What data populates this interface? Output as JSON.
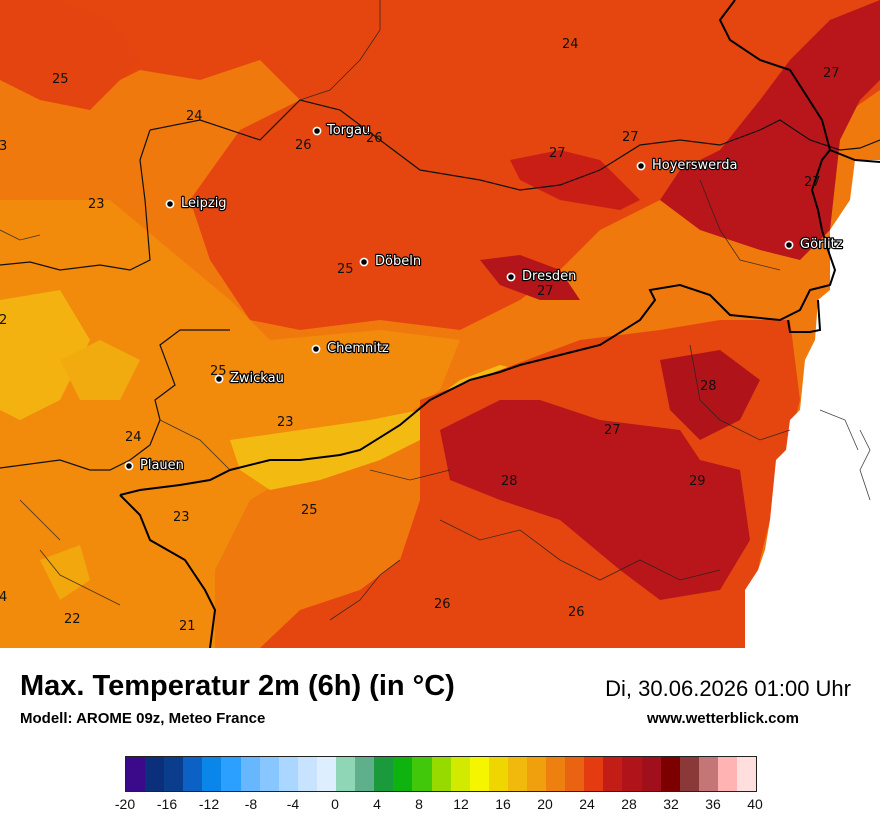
{
  "title": "Max. Temperatur 2m (6h) (in °C)",
  "model": "Modell: AROME 09z, Meteo France",
  "datetime": "Di, 30.06.2026 01:00 Uhr",
  "website": "www.wetterblick.com",
  "cities": [
    {
      "name": "Torgau"
    },
    {
      "name": "Hoyerswerda"
    },
    {
      "name": "Leipzig"
    },
    {
      "name": "Görlitz"
    },
    {
      "name": "Döbeln"
    },
    {
      "name": "Dresden"
    },
    {
      "name": "Chemnitz"
    },
    {
      "name": "Zwickau"
    },
    {
      "name": "Plauen"
    }
  ],
  "isotherm_labels": [
    "25",
    "24",
    "24",
    "26",
    "26",
    "27",
    "27",
    "27",
    "27",
    "3",
    "23",
    "25",
    "27",
    "2",
    "25",
    "28",
    "23",
    "27",
    "24",
    "28",
    "29",
    "23",
    "25",
    "4",
    "22",
    "21",
    "26",
    "26"
  ],
  "color_scale": {
    "colors": [
      "#3a0a8a",
      "#0c2f7c",
      "#0a3d8c",
      "#0c61c4",
      "#0a86ea",
      "#2ba0ff",
      "#66b7ff",
      "#88c6ff",
      "#abd6ff",
      "#c8e3ff",
      "#ddeeff",
      "#8fd6b7",
      "#5fb08a",
      "#1a9a3c",
      "#0fb30f",
      "#42c80a",
      "#97da00",
      "#d2ea00",
      "#f6f500",
      "#f0d600",
      "#f1b90b",
      "#f0a00d",
      "#ee8010",
      "#ea6313",
      "#e43b10",
      "#c21d17",
      "#b0141a",
      "#a0101c",
      "#7c0000",
      "#8a3838",
      "#c47575",
      "#ffb3b3",
      "#ffdede"
    ],
    "ticks": [
      "-20",
      "-16",
      "-12",
      "-8",
      "-4",
      "0",
      "4",
      "8",
      "12",
      "16",
      "20",
      "24",
      "28",
      "32",
      "36",
      "40"
    ]
  }
}
